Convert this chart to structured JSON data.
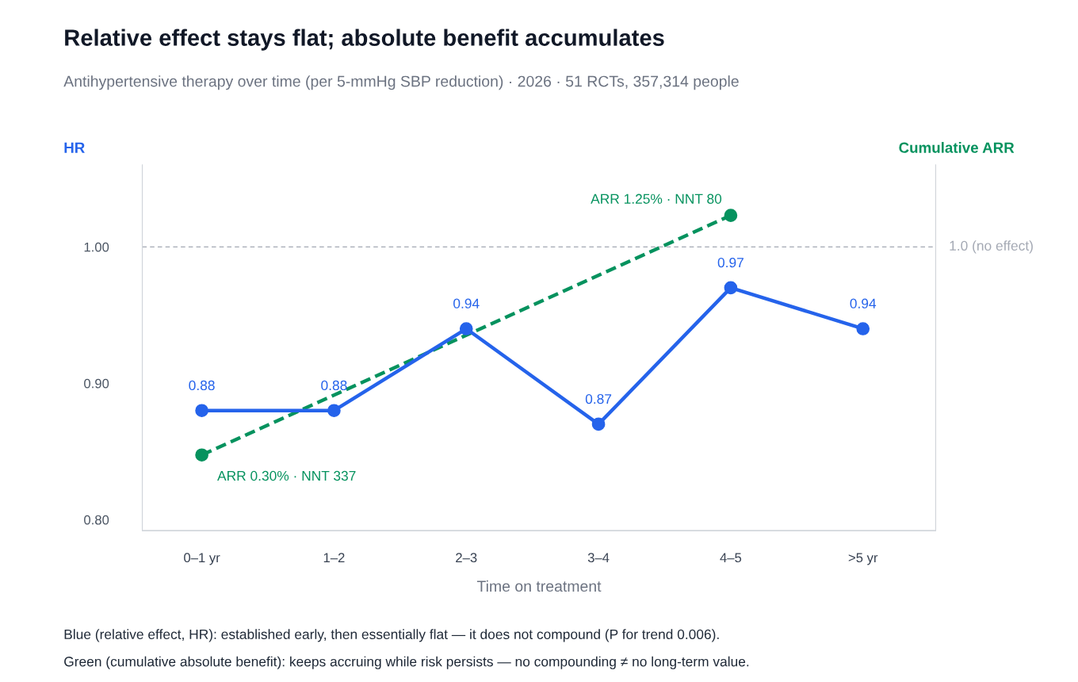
{
  "chart_data": {
    "type": "line",
    "title": "Relative effect stays flat; absolute benefit accumulates",
    "subtitle": "Antihypertensive therapy over time (per 5-mmHg SBP reduction) · 2026 · 51 RCTs, 357,314 people",
    "xlabel": "Time on treatment",
    "ylabel": "HR",
    "y2label": "Cumulative ARR",
    "categories": [
      "0–1 yr",
      "1–2",
      "2–3",
      "3–4",
      "4–5",
      ">5 yr"
    ],
    "ylim": [
      0.792,
      1.06
    ],
    "yticks": [
      {
        "value": 0.8,
        "label": "0.80"
      },
      {
        "value": 0.9,
        "label": "0.90"
      },
      {
        "value": 1.0,
        "label": "1.00"
      }
    ],
    "y2lim": [
      0,
      1.45
    ],
    "series": [
      {
        "color": "#2563eb",
        "line_style": "solid",
        "values": [
          0.88,
          0.88,
          0.94,
          0.87,
          0.97,
          0.94
        ],
        "value_labels": [
          "0.88",
          "0.88",
          "0.94",
          "0.87",
          "0.97",
          "0.94"
        ]
      },
      {
        "axis": "y2",
        "color": "#05925e",
        "line_style": "dashed",
        "values": [
          0.3,
          null,
          null,
          null,
          1.25,
          null
        ],
        "value_labels": [
          "ARR 0.30% · NNT 337",
          null,
          null,
          null,
          "ARR 1.25% · NNT 80",
          null
        ]
      }
    ],
    "ref_lines": [
      {
        "axis": "y",
        "value": 1.0,
        "label": "1.0 (no effect)",
        "color": "#a3a8b3",
        "line_style": "dashed"
      }
    ],
    "marker": "circle",
    "grid": false,
    "legend": false,
    "annotations": [
      "Blue (relative effect, HR): established early, then essentially flat — it does not compound (P for trend 0.006).",
      "Green (cumulative absolute benefit): keeps accruing while risk persists — no compounding ≠ no long-term value."
    ]
  }
}
